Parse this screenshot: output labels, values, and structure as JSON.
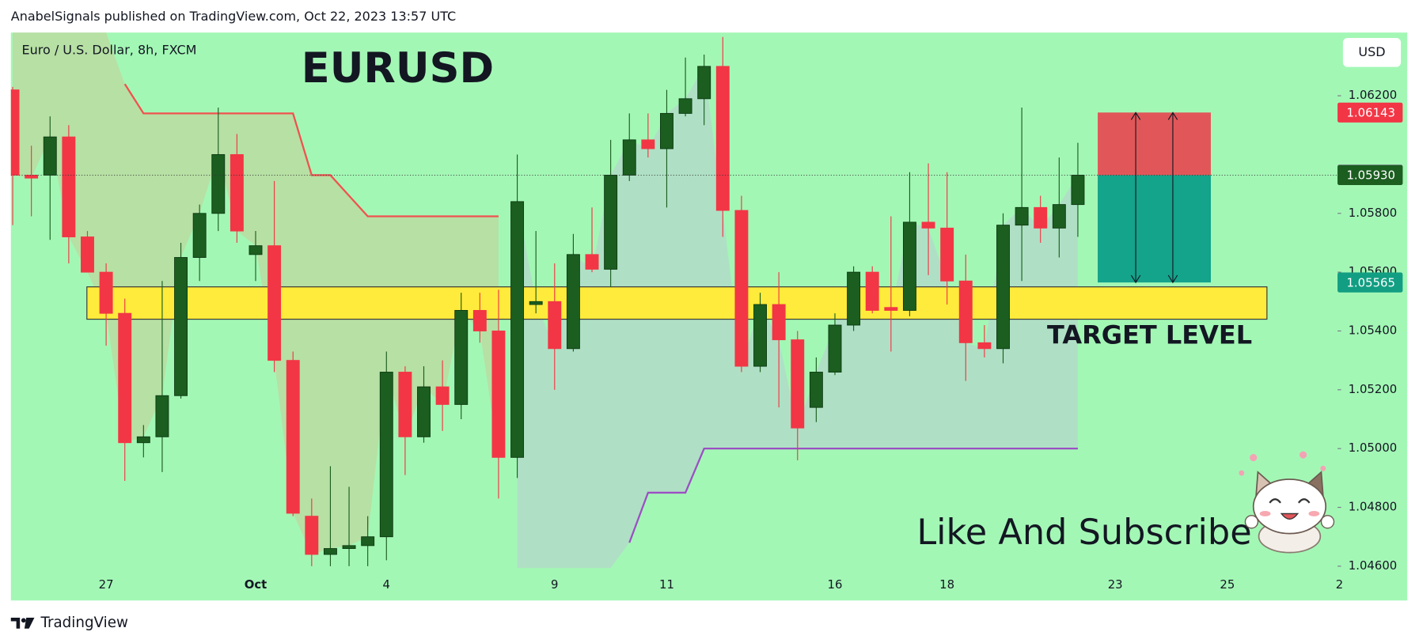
{
  "header": "AnabelSignals published on TradingView.com, Oct 22, 2023 13:57 UTC",
  "footer": "TradingView",
  "chart_data": {
    "type": "candlestick",
    "title": "EURUSD",
    "subtitle": "Euro / U.S. Dollar, 8h, FXCM",
    "currency": "USD",
    "annotation": "Like And Subscribe",
    "background": "#a3f7b5",
    "up_color": "#1b5e20",
    "down_color": "#f23645",
    "categories": [
      null,
      null,
      null,
      null,
      null,
      "27",
      null,
      null,
      null,
      null,
      null,
      null,
      null,
      "Oct",
      null,
      null,
      null,
      null,
      null,
      null,
      "4",
      null,
      null,
      null,
      null,
      null,
      null,
      null,
      null,
      "9",
      null,
      null,
      null,
      null,
      null,
      "11",
      null,
      null,
      null,
      null,
      null,
      null,
      null,
      null,
      "16",
      null,
      null,
      null,
      null,
      null,
      "18",
      null,
      null,
      null,
      null,
      null,
      null,
      null,
      null,
      "23",
      null,
      null,
      null,
      null,
      null,
      "25",
      null,
      null,
      null,
      null,
      null,
      "2"
    ],
    "open": [
      1.0622,
      1.0593,
      1.0593,
      1.0606,
      1.0572,
      1.056,
      1.0546,
      1.0502,
      1.0504,
      1.0518,
      1.0565,
      1.058,
      1.06,
      1.0566,
      1.0569,
      1.053,
      1.0477,
      1.0464,
      1.0466,
      1.0467,
      1.047,
      1.0526,
      1.0504,
      1.0521,
      1.0515,
      1.0547,
      1.054,
      1.0497,
      1.0549,
      1.055,
      1.0534,
      1.0566,
      1.0561,
      1.0593,
      1.0605,
      1.0602,
      1.0614,
      1.0619,
      1.063,
      1.0581,
      1.0528,
      1.0549,
      1.0537,
      1.0514,
      1.0526,
      1.0542,
      1.056,
      1.0548,
      1.0547,
      1.0577,
      1.0575,
      1.0557,
      1.0536,
      1.0534,
      1.0576,
      1.0582,
      1.0575,
      1.0583,
      null,
      null,
      null,
      null,
      null,
      null,
      null,
      null,
      null,
      null,
      null,
      null,
      null,
      null
    ],
    "high": [
      1.0623,
      1.0603,
      1.0613,
      1.061,
      1.0574,
      1.0563,
      1.0551,
      1.0508,
      1.0557,
      1.057,
      1.0583,
      1.0616,
      1.0607,
      1.0574,
      1.0591,
      1.0533,
      1.0483,
      1.0494,
      1.0487,
      1.0477,
      1.0533,
      1.0528,
      1.0528,
      1.053,
      1.0553,
      1.0553,
      1.0554,
      1.06,
      1.0574,
      1.0563,
      1.0573,
      1.0582,
      1.0605,
      1.0614,
      1.0614,
      1.0622,
      1.0633,
      1.0634,
      1.064,
      1.0586,
      1.0553,
      1.056,
      1.054,
      1.0531,
      1.0546,
      1.0562,
      1.0562,
      1.0579,
      1.0594,
      1.0597,
      1.0594,
      1.0566,
      1.0542,
      1.058,
      1.0616,
      1.0586,
      1.0599,
      1.0604,
      null,
      null,
      null,
      null,
      null,
      null,
      null,
      null,
      null,
      null,
      null,
      null,
      null,
      null
    ],
    "low": [
      1.0576,
      1.0579,
      1.0571,
      1.0563,
      1.056,
      1.0535,
      1.0489,
      1.0497,
      1.0492,
      1.0517,
      1.0557,
      1.0574,
      1.057,
      1.0557,
      1.0526,
      1.0477,
      1.046,
      1.046,
      1.046,
      1.046,
      1.0462,
      1.0491,
      1.0502,
      1.0506,
      1.051,
      1.0536,
      1.0483,
      1.049,
      1.0546,
      1.052,
      1.0533,
      1.056,
      1.0555,
      1.0591,
      1.0599,
      1.0582,
      1.0613,
      1.061,
      1.0572,
      1.0526,
      1.0526,
      1.0514,
      1.0496,
      1.0509,
      1.0525,
      1.054,
      1.0546,
      1.0533,
      1.0545,
      1.0559,
      1.0549,
      1.0523,
      1.0531,
      1.0529,
      1.0557,
      1.057,
      1.0565,
      1.0572,
      null,
      null,
      null,
      null,
      null,
      null,
      null,
      null,
      null,
      null,
      null,
      null,
      null,
      null
    ],
    "close": [
      1.0593,
      1.0592,
      1.0606,
      1.0572,
      1.056,
      1.0546,
      1.0502,
      1.0504,
      1.0518,
      1.0565,
      1.058,
      1.06,
      1.0574,
      1.0569,
      1.053,
      1.0478,
      1.0464,
      1.0466,
      1.0467,
      1.047,
      1.0526,
      1.0504,
      1.0521,
      1.0515,
      1.0547,
      1.054,
      1.0497,
      1.0584,
      1.055,
      1.0534,
      1.0566,
      1.0561,
      1.0593,
      1.0605,
      1.0602,
      1.0614,
      1.0619,
      1.063,
      1.0581,
      1.0528,
      1.0549,
      1.0537,
      1.0507,
      1.0526,
      1.0542,
      1.056,
      1.0547,
      1.0547,
      1.0577,
      1.0575,
      1.0557,
      1.0536,
      1.0534,
      1.0576,
      1.0582,
      1.0575,
      1.0583,
      1.0593,
      null,
      null,
      null,
      null,
      null,
      null,
      null,
      null,
      null,
      null,
      null,
      null,
      null,
      null
    ],
    "indicator_lines": [
      {
        "color": "#f0524f",
        "fill": "rgba(200,205,150,0.55)",
        "values": [
          null,
          null,
          null,
          null,
          null,
          null,
          1.0624,
          1.0614,
          1.0614,
          1.0614,
          1.0614,
          1.0614,
          1.0614,
          1.0614,
          1.0614,
          1.0614,
          1.0593,
          1.0593,
          1.0586,
          1.0579,
          1.0579,
          1.0579,
          1.0579,
          1.0579,
          1.0579,
          1.0579,
          1.0579,
          null,
          null,
          null,
          null,
          null,
          null,
          null,
          null,
          null,
          null,
          null,
          null,
          null,
          null,
          null,
          null,
          null,
          null,
          null,
          null,
          null,
          null,
          null,
          null,
          null,
          null,
          null,
          null,
          null,
          null,
          null,
          null,
          null,
          null,
          null,
          null,
          null,
          null,
          null,
          null,
          null,
          null,
          null,
          null,
          null
        ]
      },
      {
        "color": "#9c4fc4",
        "fill": "rgba(185,205,210,0.55)",
        "values": [
          null,
          null,
          null,
          null,
          null,
          null,
          null,
          null,
          null,
          null,
          null,
          null,
          null,
          null,
          null,
          null,
          null,
          null,
          null,
          null,
          null,
          null,
          null,
          null,
          null,
          null,
          null,
          null,
          null,
          null,
          null,
          null,
          null,
          1.0468,
          1.0485,
          1.0485,
          1.0485,
          1.05,
          1.05,
          1.05,
          1.05,
          1.05,
          1.05,
          1.05,
          1.05,
          1.05,
          1.05,
          1.05,
          1.05,
          1.05,
          1.05,
          1.05,
          1.05,
          1.05,
          1.05,
          1.05,
          1.05,
          1.05,
          null,
          null,
          null,
          null,
          null,
          null,
          null,
          null,
          null,
          null,
          null,
          null,
          null,
          null
        ]
      }
    ],
    "target_zone": {
      "label": "TARGET LEVEL",
      "low": 1.0544,
      "high": 1.0555,
      "color": "#ffeb3b"
    },
    "price_labels": [
      {
        "value": 1.06143,
        "label": "1.06143",
        "color": "#f23645"
      },
      {
        "value": 1.05932,
        "label": "1.05932",
        "color": "#787b86"
      },
      {
        "value": 1.0593,
        "label": "1.05930",
        "color": "#1b5e20"
      },
      {
        "value": 1.05565,
        "label": "1.05565",
        "color": "#129e82"
      }
    ],
    "position": {
      "stop_color": "#e15759",
      "target_color": "#14a38b"
    },
    "ylim": [
      1.04594,
      1.06415
    ],
    "yticks": [
      {
        "value": 1.046,
        "label": "1.04600"
      },
      {
        "value": 1.048,
        "label": "1.04800"
      },
      {
        "value": 1.05,
        "label": "1.05000"
      },
      {
        "value": 1.052,
        "label": "1.05200"
      },
      {
        "value": 1.054,
        "label": "1.05400"
      },
      {
        "value": 1.056,
        "label": "1.05600"
      },
      {
        "value": 1.058,
        "label": "1.05800"
      },
      {
        "value": 1.062,
        "label": "1.06200"
      }
    ]
  }
}
